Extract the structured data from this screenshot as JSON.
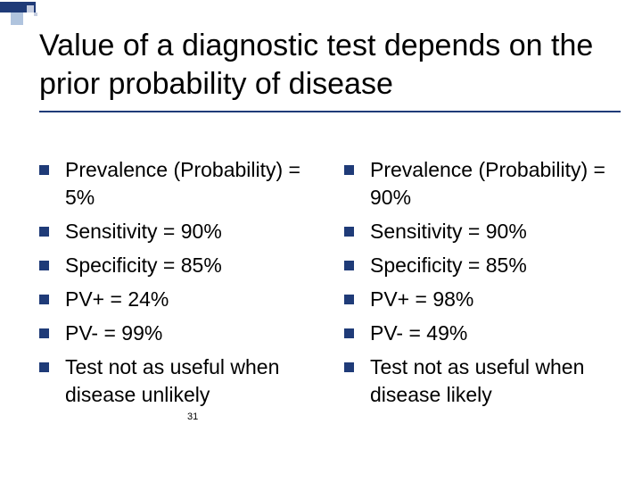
{
  "title": "Value of a diagnostic test depends on the prior probability of disease",
  "page_number": "31",
  "decoration": {
    "bar_color": "#1f3b78",
    "light_color": "#b0c4de",
    "lighter_color": "#c5cde0"
  },
  "typography": {
    "title_fontsize": 34,
    "body_fontsize": 23,
    "pagenum_fontsize": 11,
    "font_family": "Arial"
  },
  "bullet_color": "#1f3b78",
  "background_color": "#ffffff",
  "left_column": [
    "Prevalence (Probability) = 5%",
    "Sensitivity  = 90%",
    "Specificity = 85%",
    "PV+ = 24%",
    "PV- = 99%",
    "Test not as useful when disease unlikely"
  ],
  "right_column": [
    "Prevalence (Probability) = 90%",
    "Sensitivity  = 90%",
    "Specificity = 85%",
    "PV+ = 98%",
    "PV- = 49%",
    "Test not as useful when disease likely"
  ]
}
